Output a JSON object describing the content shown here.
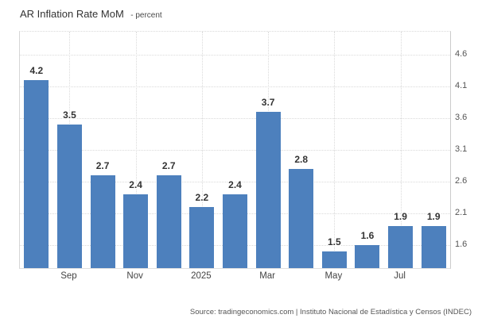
{
  "title": {
    "main": "AR Inflation Rate MoM",
    "unit": "- percent"
  },
  "source": "Source: tradingeconomics.com | Instituto Nacional de Estadística y Censos (INDEC)",
  "colors": {
    "bar": "#4d80bd",
    "grid": "#dadada",
    "axis_line": "#cccccc",
    "value_label": "#333333",
    "axis_label": "#555555",
    "background": "#ffffff"
  },
  "chart_data": {
    "type": "bar",
    "title": "AR Inflation Rate MoM",
    "ylabel": "percent",
    "values": [
      4.2,
      3.5,
      2.7,
      2.4,
      2.7,
      2.2,
      2.4,
      3.7,
      2.8,
      1.5,
      1.6,
      1.9,
      1.9
    ],
    "bar_labels": [
      "4.2",
      "3.5",
      "2.7",
      "2.4",
      "2.7",
      "2.2",
      "2.4",
      "3.7",
      "2.8",
      "1.5",
      "1.6",
      "1.9",
      "1.9"
    ],
    "x_ticks": [
      {
        "bar_index": 1,
        "label": "Sep"
      },
      {
        "bar_index": 3,
        "label": "Nov"
      },
      {
        "bar_index": 5,
        "label": "2025"
      },
      {
        "bar_index": 7,
        "label": "Mar"
      },
      {
        "bar_index": 9,
        "label": "May"
      },
      {
        "bar_index": 11,
        "label": "Jul"
      }
    ],
    "y_ticks": [
      4.6,
      4.1,
      3.6,
      3.1,
      2.6,
      2.1,
      1.6
    ],
    "ylim": [
      1.24,
      4.96
    ],
    "y_axis_side": "right",
    "grid": true,
    "legend": false
  }
}
